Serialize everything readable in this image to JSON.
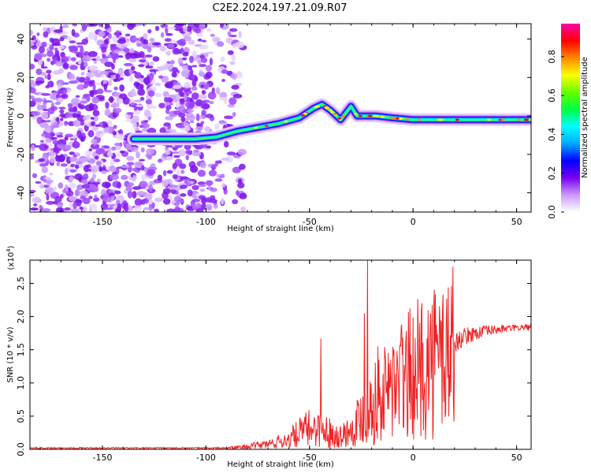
{
  "title": "C2E2.2024.197.21.09.R07",
  "chart_data": [
    {
      "type": "heatmap",
      "xlabel": "Height of straight line (km)",
      "ylabel": "Frequency (Hz)",
      "xlim": [
        -185,
        57
      ],
      "ylim": [
        -50,
        48
      ],
      "xticks": [
        -150,
        -100,
        -50,
        0,
        50
      ],
      "yticks": [
        -40,
        -20,
        0,
        20,
        40
      ],
      "colorbar": {
        "label": "Normalized spectral amplitude",
        "range": [
          0.0,
          0.97
        ],
        "ticks": [
          "0.0",
          "0.2",
          "0.4",
          "0.6",
          "0.8"
        ],
        "colors": [
          "#ffffff",
          "#cc99ff",
          "#7700ee",
          "#0000ff",
          "#00aaff",
          "#00ffff",
          "#00ff44",
          "#66ff00",
          "#ffff00",
          "#ff8800",
          "#ff0000",
          "#ff00aa"
        ]
      },
      "ridge": {
        "x": [
          -135,
          -125,
          -115,
          -105,
          -95,
          -85,
          -75,
          -65,
          -55,
          -48,
          -44,
          -40,
          -35,
          -30,
          -27,
          -22,
          -18,
          -10,
          0,
          10,
          20,
          30,
          40,
          50,
          57
        ],
        "y": [
          -12,
          -12,
          -12,
          -12,
          -11,
          -8,
          -6,
          -4,
          -1,
          4,
          6,
          3,
          -2,
          5,
          0,
          0,
          0,
          -1,
          -2,
          -2,
          -2,
          -2,
          -2,
          -2,
          -2
        ]
      },
      "noise_region_x": [
        -185,
        -88
      ]
    },
    {
      "type": "line",
      "xlabel": "Height of straight line (km)",
      "ylabel": "SNR (10 * v/v)",
      "y_multiplier": "(x10",
      "y_multiplier_exp": "4",
      "y_multiplier_close": ")",
      "xlim": [
        -185,
        57
      ],
      "ylim": [
        0.0,
        2.85
      ],
      "xticks": [
        -150,
        -100,
        -50,
        0,
        50
      ],
      "yticks": [
        "0.0",
        "0.5",
        "1.0",
        "1.5",
        "2.0",
        "2.5"
      ],
      "series": [
        {
          "color": "#ee2222",
          "envelope_x": [
            -185,
            -90,
            -80,
            -70,
            -60,
            -55,
            -50,
            -45,
            -40,
            -35,
            -30,
            -25,
            -20,
            -15,
            -10,
            -5,
            0,
            5,
            10,
            15,
            20,
            25,
            30,
            35,
            40,
            45,
            50,
            57
          ],
          "envelope_y": [
            0.02,
            0.02,
            0.04,
            0.08,
            0.15,
            0.25,
            0.32,
            0.32,
            0.25,
            0.2,
            0.3,
            0.5,
            0.65,
            0.8,
            0.95,
            1.05,
            1.15,
            1.25,
            1.35,
            1.45,
            1.6,
            1.7,
            1.75,
            1.78,
            1.8,
            1.82,
            1.83,
            1.84
          ],
          "spikes": [
            {
              "x": -44.5,
              "y": 1.67
            },
            {
              "x": -22,
              "y": 2.85
            },
            {
              "x": -23.5,
              "y": 2.05
            },
            {
              "x": -17,
              "y": 1.55
            },
            {
              "x": -12,
              "y": 1.45
            },
            {
              "x": -6,
              "y": 1.55
            },
            {
              "x": -2,
              "y": 1.5
            },
            {
              "x": 1,
              "y": 1.68
            },
            {
              "x": 12,
              "y": 1.55
            }
          ]
        }
      ]
    }
  ]
}
